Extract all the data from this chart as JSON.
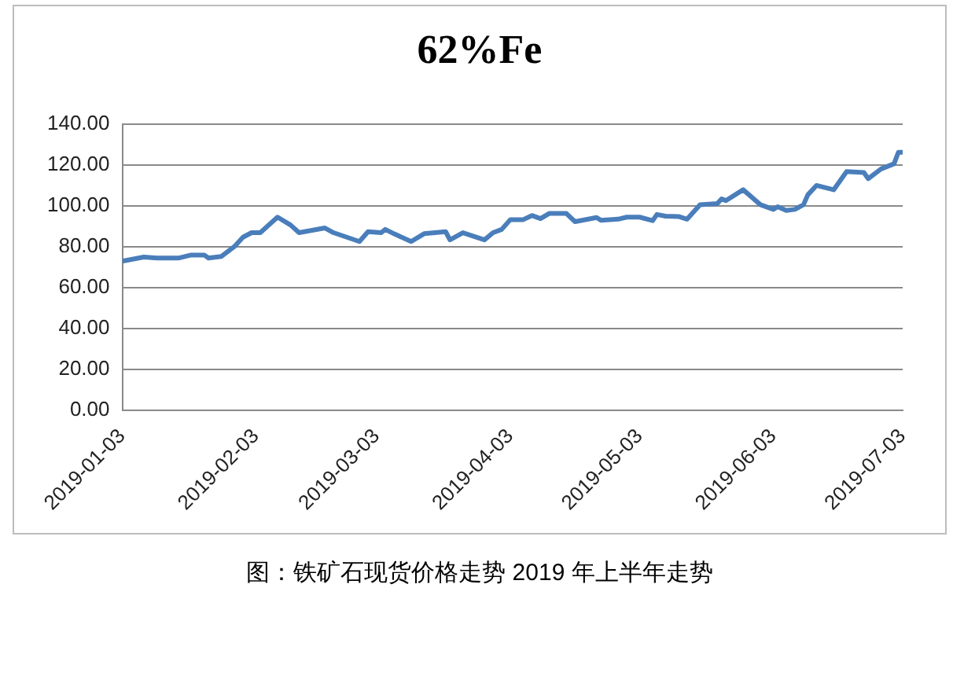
{
  "chart_data": {
    "type": "line",
    "title": "62%Fe",
    "annotations": [
      "图：铁矿石现货价格走势 2019 年上半年走势"
    ],
    "x": [
      "2019-01-03",
      "2019-01-08",
      "2019-01-11",
      "2019-01-16",
      "2019-01-19",
      "2019-01-22",
      "2019-01-23",
      "2019-01-26",
      "2019-01-29",
      "2019-01-31",
      "2019-02-02",
      "2019-02-04",
      "2019-02-08",
      "2019-02-11",
      "2019-02-13",
      "2019-02-19",
      "2019-02-21",
      "2019-02-27",
      "2019-03-01",
      "2019-03-04",
      "2019-03-05",
      "2019-03-07",
      "2019-03-11",
      "2019-03-14",
      "2019-03-19",
      "2019-03-20",
      "2019-03-23",
      "2019-03-28",
      "2019-03-30",
      "2019-04-01",
      "2019-04-03",
      "2019-04-06",
      "2019-04-08",
      "2019-04-10",
      "2019-04-12",
      "2019-04-16",
      "2019-04-18",
      "2019-04-23",
      "2019-04-24",
      "2019-04-28",
      "2019-04-30",
      "2019-05-03",
      "2019-05-06",
      "2019-05-07",
      "2019-05-09",
      "2019-05-12",
      "2019-05-14",
      "2019-05-17",
      "2019-05-21",
      "2019-05-22",
      "2019-05-23",
      "2019-05-27",
      "2019-05-31",
      "2019-06-03",
      "2019-06-04",
      "2019-06-06",
      "2019-06-08",
      "2019-06-10",
      "2019-06-11",
      "2019-06-13",
      "2019-06-17",
      "2019-06-20",
      "2019-06-24",
      "2019-06-25",
      "2019-06-28",
      "2019-07-01",
      "2019-07-02",
      "2019-07-03"
    ],
    "series": [
      {
        "color": "#4a7ebb",
        "values": [
          72.9,
          74.9,
          74.4,
          74.4,
          75.9,
          75.9,
          74.4,
          75.2,
          80.0,
          84.6,
          86.8,
          86.8,
          94.4,
          90.6,
          86.8,
          89.1,
          86.8,
          82.5,
          87.3,
          86.8,
          88.4,
          86.3,
          82.5,
          86.3,
          87.3,
          83.3,
          86.8,
          83.3,
          86.8,
          88.4,
          93.2,
          93.2,
          95.2,
          93.7,
          96.2,
          96.2,
          92.2,
          94.2,
          92.9,
          93.4,
          94.4,
          94.4,
          92.7,
          95.7,
          94.9,
          94.7,
          93.4,
          100.5,
          101.0,
          103.3,
          102.5,
          107.8,
          100.5,
          98.2,
          99.5,
          97.7,
          98.2,
          100.5,
          105.3,
          109.9,
          107.8,
          116.7,
          116.2,
          113.2,
          118.0,
          120.5,
          126.1,
          126.1
        ]
      }
    ],
    "xlim": [
      "2019-01-03",
      "2019-07-03"
    ],
    "xticks": [
      "2019-01-03",
      "2019-02-03",
      "2019-03-03",
      "2019-04-03",
      "2019-05-03",
      "2019-06-03",
      "2019-07-03"
    ],
    "ylim": [
      0,
      140
    ],
    "yticks": [
      {
        "value": 0,
        "label": "0.00"
      },
      {
        "value": 20,
        "label": "20.00"
      },
      {
        "value": 40,
        "label": "40.00"
      },
      {
        "value": 60,
        "label": "60.00"
      },
      {
        "value": 80,
        "label": "80.00"
      },
      {
        "value": 100,
        "label": "100.00"
      },
      {
        "value": 120,
        "label": "120.00"
      },
      {
        "value": 140,
        "label": "140.00"
      }
    ],
    "grid": "y",
    "legend": false,
    "marker": "none",
    "line_style": "solid"
  }
}
